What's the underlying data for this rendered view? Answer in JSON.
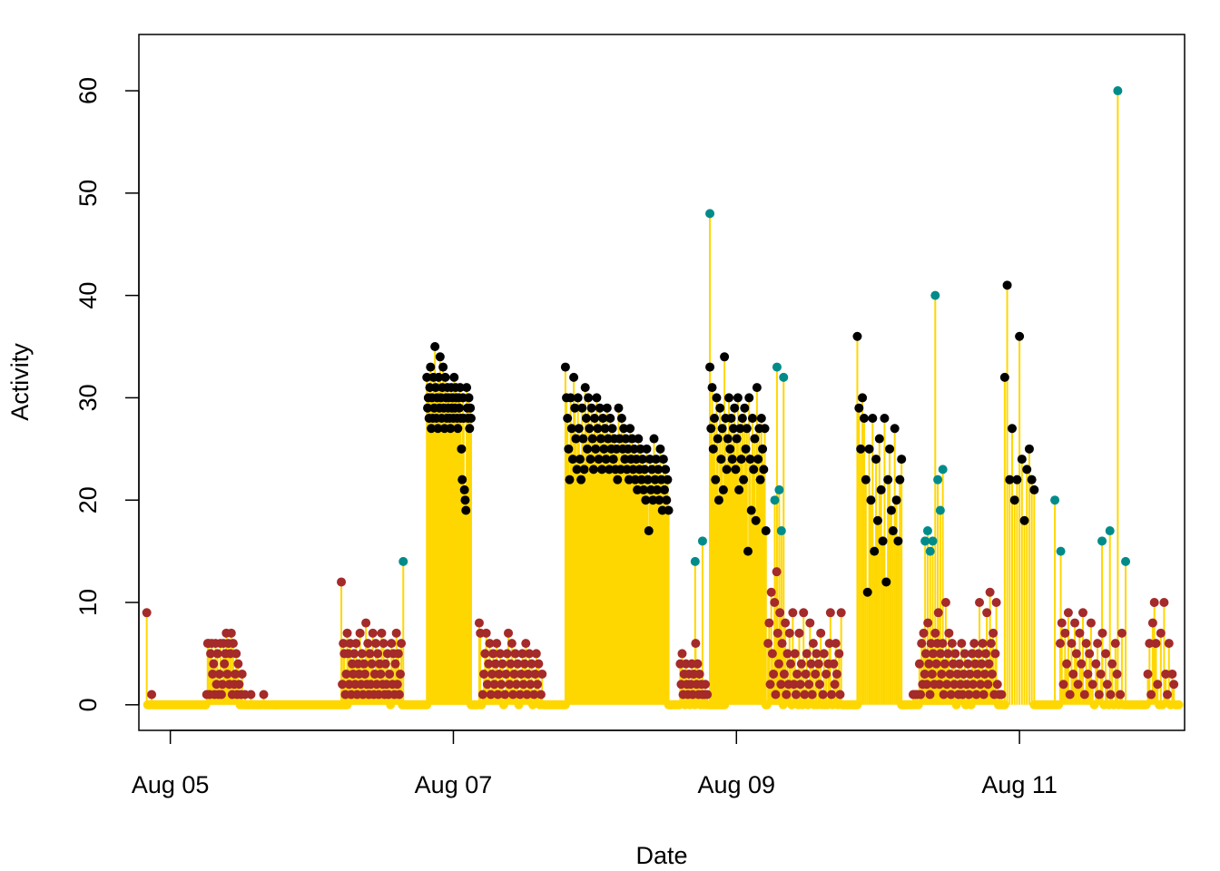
{
  "chart_data": {
    "type": "scatter",
    "subtype": "histogram-like vertical lines with points",
    "title": "",
    "xlabel": "Date",
    "ylabel": "Activity",
    "x_ticks": [
      "Aug 05",
      "Aug 07",
      "Aug 09",
      "Aug 11"
    ],
    "y_ticks": [
      "0",
      "10",
      "20",
      "30",
      "40",
      "50",
      "60"
    ],
    "xlim": [
      "2023-08-04 18:40",
      "2023-08-12 04:00"
    ],
    "ylim": [
      -2.5,
      65.5
    ],
    "grid": false,
    "legend": "none",
    "line_color": "#FFD700",
    "colors": {
      "zero": "#FFD700",
      "low": "#A52A2A",
      "high": "#000000",
      "spike": "#008B8B"
    },
    "color_rule": "zero = gold; low-activity periods = brown; sustained high-activity periods = black; isolated spikes = teal",
    "segments": [
      {
        "start": "2023-08-04 20:00",
        "end": "2023-08-05 06:00",
        "color": "low",
        "values": [
          9,
          0,
          0,
          0,
          0,
          1,
          0,
          0,
          0,
          0,
          0,
          0,
          0,
          0,
          0,
          0,
          0,
          0,
          0,
          0,
          0,
          0,
          0,
          0,
          0,
          0,
          0,
          0,
          0,
          0,
          0,
          0,
          0,
          0,
          0,
          0,
          0,
          0,
          0,
          0,
          0,
          0,
          0,
          0,
          0,
          0,
          0,
          0,
          0,
          0,
          0,
          0,
          0,
          0,
          0,
          0,
          0,
          0,
          0,
          0,
          0
        ]
      },
      {
        "start": "2023-08-05 06:00",
        "end": "2023-08-05 18:00",
        "color": "low",
        "values": [
          0,
          1,
          6,
          6,
          1,
          5,
          6,
          3,
          4,
          1,
          6,
          2,
          5,
          1,
          3,
          6,
          1,
          2,
          6,
          4,
          5,
          7,
          3,
          6,
          2,
          5,
          7,
          1,
          6,
          2,
          3,
          5,
          1,
          4,
          2,
          0,
          1,
          3,
          0,
          0,
          1,
          0,
          0,
          0,
          0,
          0,
          1,
          0,
          0,
          0,
          0,
          0,
          0,
          0,
          0,
          0,
          0,
          0,
          0,
          1,
          0,
          0,
          0,
          0,
          0,
          0,
          0,
          0,
          0,
          0,
          0,
          0,
          0
        ]
      },
      {
        "start": "2023-08-05 18:00",
        "end": "2023-08-06 06:00",
        "color": "low",
        "values": [
          0,
          0,
          0,
          0,
          0,
          0,
          0,
          0,
          0,
          0,
          0,
          0,
          0,
          0,
          0,
          0,
          0,
          0,
          0,
          0,
          0,
          0,
          0,
          0,
          0,
          0,
          0,
          0,
          0,
          0,
          0,
          0,
          0,
          0,
          0,
          0,
          0,
          0,
          0,
          0,
          0,
          0,
          0,
          0,
          0,
          0,
          0,
          0,
          0,
          0,
          0,
          0,
          0,
          0,
          0,
          0,
          0,
          0,
          0,
          0,
          0,
          0,
          0,
          0,
          0,
          0,
          0,
          0,
          0,
          0,
          0,
          0,
          0
        ]
      },
      {
        "start": "2023-08-06 05:00",
        "end": "2023-08-06 19:30",
        "color": "low",
        "values": [
          12,
          2,
          6,
          5,
          1,
          3,
          7,
          5,
          2,
          6,
          1,
          4,
          3,
          5,
          2,
          6,
          1,
          4,
          3,
          7,
          2,
          5,
          1,
          4,
          3,
          8,
          2,
          6,
          1,
          5,
          2,
          4,
          7,
          1,
          3,
          6,
          2,
          5,
          1,
          4,
          3,
          7,
          2,
          6,
          1,
          4,
          2,
          5,
          1,
          3,
          0,
          6,
          2,
          5,
          1,
          4,
          7,
          2,
          5,
          1,
          3,
          6,
          0,
          0,
          0,
          0,
          0,
          0,
          0,
          0,
          0,
          0,
          0,
          0,
          0,
          0,
          0,
          0,
          0,
          0,
          0,
          0,
          0,
          0,
          0,
          0,
          0,
          0
        ]
      },
      {
        "start": "2023-08-06 15:00",
        "end": "2023-08-06 16:00",
        "color": "spike",
        "values": [
          14
        ]
      },
      {
        "start": "2023-08-06 19:30",
        "end": "2023-08-07 03:00",
        "color": "high",
        "values": [
          32,
          29,
          30,
          28,
          31,
          33,
          27,
          30,
          28,
          32,
          29,
          35,
          31,
          28,
          30,
          27,
          32,
          29,
          34,
          30,
          28,
          31,
          33,
          29,
          27,
          32,
          30,
          28,
          31,
          29,
          30,
          28,
          27,
          31,
          29,
          30,
          28,
          32,
          29,
          31,
          30,
          28,
          27,
          30,
          29,
          31,
          28,
          25,
          22,
          30,
          28,
          21,
          20,
          19,
          31,
          29,
          28,
          30,
          27,
          29,
          28
        ]
      },
      {
        "start": "2023-08-07 03:00",
        "end": "2023-08-07 19:00",
        "color": "low",
        "values": [
          0,
          0,
          0,
          0,
          0,
          0,
          0,
          8,
          7,
          0,
          1,
          3,
          5,
          7,
          2,
          4,
          6,
          1,
          3,
          5,
          2,
          4,
          6,
          1,
          3,
          5,
          2,
          4,
          0,
          1,
          3,
          5,
          7,
          2,
          4,
          6,
          1,
          3,
          5,
          2,
          4,
          0,
          1,
          3,
          5,
          2,
          4,
          6,
          1,
          3,
          5,
          2,
          4,
          0,
          1,
          3,
          5,
          2,
          4,
          0,
          1,
          3,
          0,
          0,
          0,
          0,
          0,
          0,
          0,
          0,
          0,
          0,
          0,
          0,
          0,
          0,
          0,
          0,
          0,
          0,
          0,
          0
        ]
      },
      {
        "start": "2023-08-07 19:00",
        "end": "2023-08-08 12:30",
        "color": "high",
        "values": [
          33,
          30,
          28,
          25,
          22,
          30,
          27,
          24,
          32,
          29,
          26,
          23,
          30,
          27,
          24,
          22,
          29,
          26,
          23,
          31,
          28,
          25,
          30,
          27,
          24,
          29,
          26,
          23,
          28,
          25,
          30,
          27,
          24,
          29,
          26,
          23,
          28,
          25,
          27,
          24,
          29,
          26,
          23,
          28,
          25,
          27,
          24,
          26,
          23,
          25,
          22,
          29,
          26,
          23,
          28,
          25,
          27,
          24,
          26,
          23,
          25,
          22,
          27,
          24,
          26,
          23,
          25,
          22,
          24,
          21,
          26,
          23,
          25,
          22,
          24,
          21,
          23,
          20,
          25,
          22,
          17,
          24,
          21,
          23,
          20,
          26,
          22,
          24,
          21,
          23,
          20,
          25,
          22,
          19,
          24,
          21,
          23,
          20,
          22,
          19
        ]
      },
      {
        "start": "2023-08-08 12:30",
        "end": "2023-08-08 22:00",
        "color": "low",
        "values": [
          0,
          0,
          0,
          0,
          0,
          0,
          0,
          0,
          0,
          0,
          0,
          0,
          4,
          2,
          5,
          1,
          3,
          0,
          4,
          2,
          1,
          3,
          0,
          2,
          4,
          1,
          3,
          0,
          6,
          2,
          4,
          1,
          3,
          0,
          2,
          1,
          0,
          1,
          2,
          0,
          1,
          0,
          0,
          0,
          0,
          0,
          0,
          0,
          0,
          0,
          0,
          0,
          0,
          0,
          0,
          0,
          0,
          0,
          0
        ]
      },
      {
        "start": "2023-08-08 17:00",
        "end": "2023-08-08 19:30",
        "color": "spike",
        "values": [
          14,
          16,
          48
        ]
      },
      {
        "start": "2023-08-08 19:30",
        "end": "2023-08-09 05:00",
        "color": "high",
        "values": [
          33,
          27,
          31,
          25,
          28,
          22,
          30,
          26,
          20,
          29,
          24,
          27,
          21,
          34,
          28,
          23,
          26,
          30,
          25,
          28,
          24,
          27,
          29,
          23,
          26,
          30,
          21,
          27,
          24,
          28,
          22,
          29,
          25,
          27,
          15,
          30,
          24,
          19,
          28,
          23,
          26,
          18,
          31,
          24,
          27,
          22,
          28,
          25,
          23,
          27,
          17
        ]
      },
      {
        "start": "2023-08-09 05:00",
        "end": "2023-08-09 20:30",
        "color": "low",
        "values": [
          0,
          0,
          6,
          8,
          2,
          11,
          5,
          3,
          10,
          1,
          13,
          7,
          4,
          9,
          2,
          6,
          0,
          3,
          8,
          1,
          5,
          2,
          7,
          4,
          0,
          9,
          2,
          5,
          1,
          3,
          0,
          7,
          2,
          4,
          0,
          9,
          1,
          3,
          5,
          0,
          2,
          8,
          4,
          1,
          6,
          0,
          3,
          5,
          0,
          4,
          2,
          7,
          0,
          1,
          5,
          0,
          3,
          0,
          4,
          6,
          9,
          1,
          0,
          4,
          2,
          6,
          3,
          0,
          5,
          1,
          9,
          0,
          0,
          0,
          0,
          0,
          0,
          0,
          0,
          0,
          0,
          0,
          0,
          0,
          0,
          0
        ]
      },
      {
        "start": "2023-08-09 06:30",
        "end": "2023-08-09 08:00",
        "color": "spike",
        "values": [
          20,
          33,
          21,
          17,
          32
        ]
      },
      {
        "start": "2023-08-09 20:30",
        "end": "2023-08-10 04:00",
        "color": "high",
        "values": [
          36,
          29,
          25,
          30,
          28,
          22,
          11,
          25,
          20,
          28,
          15,
          24,
          18,
          26,
          21,
          16,
          28,
          12,
          22,
          25,
          19,
          17,
          27,
          20,
          16,
          22,
          24
        ]
      },
      {
        "start": "2023-08-10 04:00",
        "end": "2023-08-10 21:30",
        "color": "low",
        "values": [
          0,
          0,
          0,
          0,
          0,
          0,
          0,
          0,
          0,
          0,
          0,
          1,
          0,
          1,
          0,
          1,
          0,
          4,
          1,
          6,
          2,
          7,
          3,
          5,
          2,
          8,
          4,
          1,
          6,
          3,
          5,
          2,
          7,
          4,
          6,
          9,
          2,
          5,
          3,
          6,
          1,
          4,
          10,
          2,
          5,
          7,
          3,
          1,
          6,
          4,
          2,
          5,
          0,
          3,
          1,
          4,
          2,
          6,
          1,
          3,
          5,
          0,
          2,
          4,
          1,
          3,
          0,
          5,
          2,
          6,
          4,
          1,
          3,
          5,
          10,
          2,
          4,
          6,
          1,
          3,
          5,
          9,
          2,
          4,
          11,
          6,
          3,
          7,
          1,
          5,
          10,
          2,
          0,
          1,
          0,
          1,
          0,
          0,
          0
        ]
      },
      {
        "start": "2023-08-10 08:00",
        "end": "2023-08-10 11:00",
        "color": "spike",
        "values": [
          16,
          17,
          15,
          16,
          40,
          22,
          19,
          23
        ]
      },
      {
        "start": "2023-08-10 21:30",
        "end": "2023-08-11 02:30",
        "color": "high",
        "values": [
          32,
          41,
          22,
          27,
          20,
          22,
          36,
          24,
          18,
          23,
          25,
          22,
          21
        ]
      },
      {
        "start": "2023-08-11 02:30",
        "end": "2023-08-12 03:00",
        "color": "low",
        "values": [
          0,
          0,
          0,
          0,
          0,
          0,
          0,
          0,
          0,
          0,
          0,
          0,
          0,
          0,
          0,
          0,
          6,
          8,
          2,
          7,
          4,
          9,
          1,
          6,
          3,
          8,
          5,
          2,
          7,
          4,
          9,
          1,
          6,
          3,
          5,
          8,
          2,
          0,
          4,
          6,
          1,
          3,
          7,
          0,
          5,
          2,
          0,
          1,
          4,
          0,
          6,
          3,
          0,
          1,
          7,
          0,
          0,
          0,
          0,
          0,
          0,
          0,
          0,
          0,
          0,
          0,
          0,
          0,
          0,
          0,
          3,
          6,
          1,
          8,
          10,
          6,
          2,
          0,
          7,
          0,
          10,
          3,
          1,
          6,
          0,
          3,
          2,
          0,
          0,
          0
        ]
      },
      {
        "start": "2023-08-11 06:00",
        "end": "2023-08-11 07:00",
        "color": "spike",
        "values": [
          20,
          15
        ]
      },
      {
        "start": "2023-08-11 14:00",
        "end": "2023-08-11 18:00",
        "color": "spike",
        "values": [
          16,
          17,
          60,
          14
        ]
      }
    ]
  }
}
